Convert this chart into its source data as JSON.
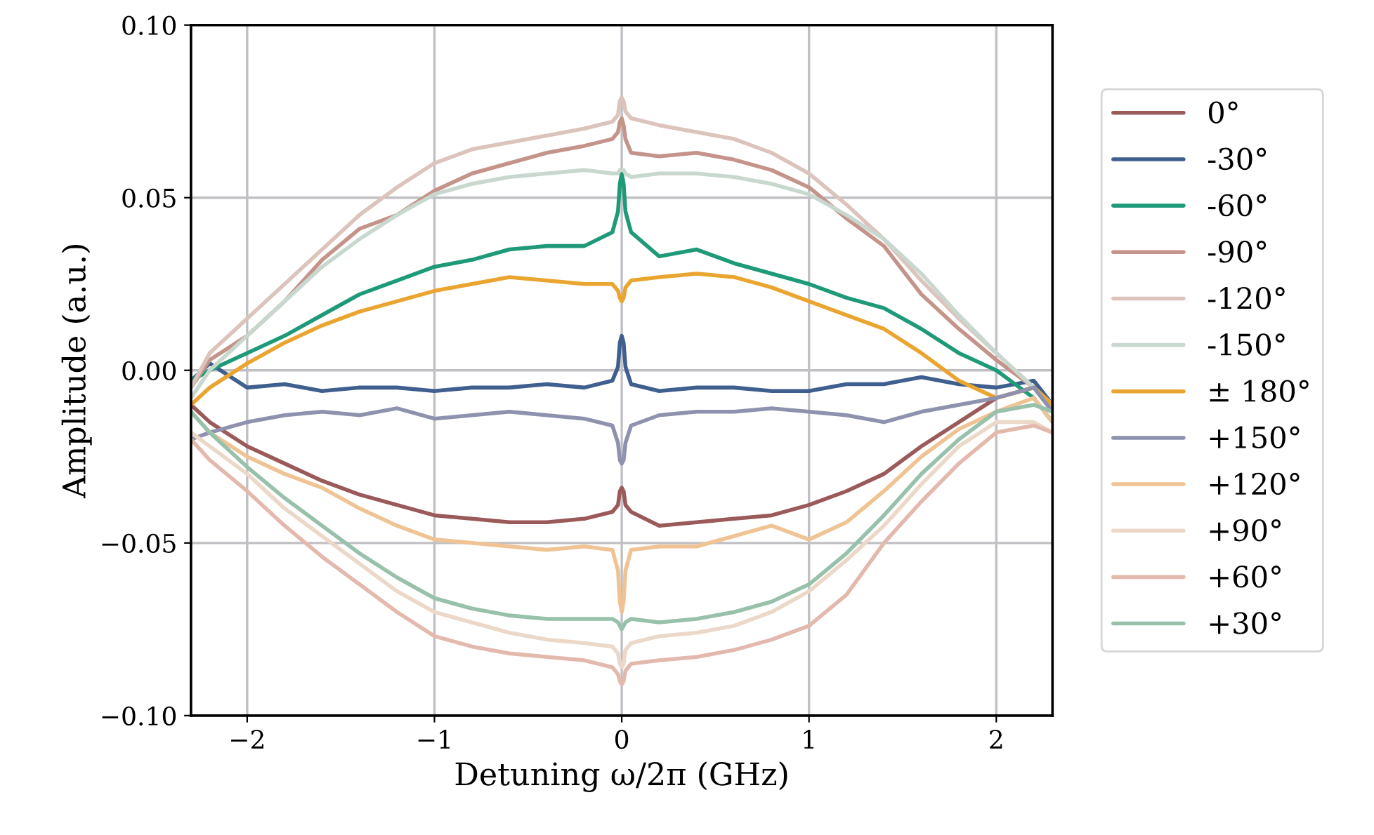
{
  "chart_data": {
    "type": "line",
    "xlabel": "Detuning ω/2π (GHz)",
    "ylabel": "Amplitude (a.u.)",
    "x": [
      -2.3,
      -2.2,
      -2.0,
      -1.8,
      -1.6,
      -1.4,
      -1.2,
      -1.0,
      -0.8,
      -0.6,
      -0.4,
      -0.2,
      -0.05,
      -0.02,
      -0.01,
      0,
      0.01,
      0.02,
      0.05,
      0.2,
      0.4,
      0.6,
      0.8,
      1.0,
      1.2,
      1.4,
      1.6,
      1.8,
      2.0,
      2.2,
      2.3
    ],
    "xlim": [
      -2.3,
      2.3
    ],
    "ylim": [
      -0.1,
      0.1
    ],
    "xticks": [
      {
        "value": -2,
        "label": "−2"
      },
      {
        "value": -1,
        "label": "−1"
      },
      {
        "value": 0,
        "label": "0"
      },
      {
        "value": 1,
        "label": "1"
      },
      {
        "value": 2,
        "label": "2"
      }
    ],
    "yticks": [
      {
        "value": -0.1,
        "label": "−0.10"
      },
      {
        "value": -0.05,
        "label": "−0.05"
      },
      {
        "value": 0,
        "label": "0.00"
      },
      {
        "value": 0.05,
        "label": "0.05"
      },
      {
        "value": 0.1,
        "label": "0.10"
      }
    ],
    "grid": true,
    "legend": "right",
    "marker": "none",
    "line_style": "solid",
    "series": [
      {
        "name": "0°",
        "color": "#9b5a5a",
        "values": [
          -0.01,
          -0.015,
          -0.022,
          -0.027,
          -0.032,
          -0.036,
          -0.039,
          -0.042,
          -0.043,
          -0.044,
          -0.044,
          -0.043,
          -0.041,
          -0.039,
          -0.035,
          -0.034,
          -0.035,
          -0.039,
          -0.041,
          -0.045,
          -0.044,
          -0.043,
          -0.042,
          -0.039,
          -0.035,
          -0.03,
          -0.022,
          -0.015,
          -0.008,
          -0.005,
          -0.01
        ]
      },
      {
        "name": "-30°",
        "color": "#3f5f8f",
        "values": [
          -0.003,
          0.002,
          -0.005,
          -0.004,
          -0.006,
          -0.005,
          -0.005,
          -0.006,
          -0.005,
          -0.005,
          -0.004,
          -0.005,
          -0.003,
          0.001,
          0.008,
          0.01,
          0.008,
          0.001,
          -0.004,
          -0.006,
          -0.005,
          -0.005,
          -0.006,
          -0.006,
          -0.004,
          -0.004,
          -0.002,
          -0.004,
          -0.005,
          -0.003,
          -0.01
        ]
      },
      {
        "name": "-60°",
        "color": "#1f9a78",
        "values": [
          -0.003,
          0.0,
          0.005,
          0.01,
          0.016,
          0.022,
          0.026,
          0.03,
          0.032,
          0.035,
          0.036,
          0.036,
          0.04,
          0.046,
          0.054,
          0.057,
          0.054,
          0.046,
          0.04,
          0.033,
          0.035,
          0.031,
          0.028,
          0.025,
          0.021,
          0.018,
          0.012,
          0.005,
          0.0,
          -0.008,
          -0.015
        ]
      },
      {
        "name": "-90°",
        "color": "#c4948a",
        "values": [
          -0.005,
          0.003,
          0.01,
          0.02,
          0.032,
          0.041,
          0.045,
          0.052,
          0.057,
          0.06,
          0.063,
          0.065,
          0.067,
          0.069,
          0.072,
          0.073,
          0.071,
          0.067,
          0.063,
          0.062,
          0.063,
          0.061,
          0.058,
          0.053,
          0.044,
          0.036,
          0.022,
          0.012,
          0.003,
          -0.005,
          -0.01
        ]
      },
      {
        "name": "-120°",
        "color": "#dcc4bc",
        "values": [
          -0.005,
          0.005,
          0.015,
          0.025,
          0.035,
          0.045,
          0.053,
          0.06,
          0.064,
          0.066,
          0.068,
          0.07,
          0.072,
          0.074,
          0.078,
          0.079,
          0.078,
          0.075,
          0.073,
          0.071,
          0.069,
          0.067,
          0.063,
          0.057,
          0.048,
          0.038,
          0.026,
          0.015,
          0.005,
          -0.005,
          -0.01
        ]
      },
      {
        "name": "-150°",
        "color": "#c9d8cf",
        "values": [
          -0.008,
          0.0,
          0.01,
          0.02,
          0.03,
          0.038,
          0.045,
          0.051,
          0.054,
          0.056,
          0.057,
          0.058,
          0.057,
          0.057,
          0.058,
          0.058,
          0.058,
          0.057,
          0.056,
          0.057,
          0.057,
          0.056,
          0.054,
          0.051,
          0.045,
          0.038,
          0.028,
          0.016,
          0.005,
          -0.005,
          -0.01
        ]
      },
      {
        "name": "± 180°",
        "color": "#eaa530",
        "values": [
          -0.01,
          -0.005,
          0.002,
          0.008,
          0.013,
          0.017,
          0.02,
          0.023,
          0.025,
          0.027,
          0.026,
          0.025,
          0.025,
          0.023,
          0.021,
          0.02,
          0.021,
          0.024,
          0.026,
          0.027,
          0.028,
          0.027,
          0.024,
          0.02,
          0.016,
          0.012,
          0.005,
          -0.003,
          -0.008,
          -0.005,
          -0.01
        ]
      },
      {
        "name": "+150°",
        "color": "#8f92ae",
        "values": [
          -0.02,
          -0.018,
          -0.015,
          -0.013,
          -0.012,
          -0.013,
          -0.011,
          -0.014,
          -0.013,
          -0.012,
          -0.013,
          -0.014,
          -0.016,
          -0.021,
          -0.026,
          -0.027,
          -0.026,
          -0.021,
          -0.016,
          -0.013,
          -0.012,
          -0.012,
          -0.011,
          -0.012,
          -0.013,
          -0.015,
          -0.012,
          -0.01,
          -0.008,
          -0.005,
          -0.012
        ]
      },
      {
        "name": "+120°",
        "color": "#efc393",
        "values": [
          -0.012,
          -0.018,
          -0.025,
          -0.03,
          -0.034,
          -0.04,
          -0.045,
          -0.049,
          -0.05,
          -0.051,
          -0.052,
          -0.051,
          -0.052,
          -0.058,
          -0.067,
          -0.07,
          -0.067,
          -0.058,
          -0.052,
          -0.051,
          -0.051,
          -0.048,
          -0.045,
          -0.049,
          -0.044,
          -0.035,
          -0.025,
          -0.017,
          -0.012,
          -0.008,
          -0.015
        ]
      },
      {
        "name": "+90°",
        "color": "#ecd8c8",
        "values": [
          -0.018,
          -0.022,
          -0.03,
          -0.04,
          -0.048,
          -0.056,
          -0.064,
          -0.07,
          -0.073,
          -0.076,
          -0.078,
          -0.079,
          -0.08,
          -0.082,
          -0.085,
          -0.086,
          -0.085,
          -0.081,
          -0.079,
          -0.077,
          -0.076,
          -0.074,
          -0.07,
          -0.064,
          -0.055,
          -0.045,
          -0.033,
          -0.022,
          -0.015,
          -0.015,
          -0.018
        ]
      },
      {
        "name": "+60°",
        "color": "#e4b9ad",
        "values": [
          -0.02,
          -0.026,
          -0.035,
          -0.045,
          -0.054,
          -0.062,
          -0.07,
          -0.077,
          -0.08,
          -0.082,
          -0.083,
          -0.084,
          -0.086,
          -0.088,
          -0.09,
          -0.091,
          -0.09,
          -0.087,
          -0.085,
          -0.084,
          -0.083,
          -0.081,
          -0.078,
          -0.074,
          -0.065,
          -0.05,
          -0.038,
          -0.027,
          -0.018,
          -0.016,
          -0.018
        ]
      },
      {
        "name": "+30°",
        "color": "#98c1ab",
        "values": [
          -0.012,
          -0.018,
          -0.028,
          -0.037,
          -0.045,
          -0.053,
          -0.06,
          -0.066,
          -0.069,
          -0.071,
          -0.072,
          -0.072,
          -0.072,
          -0.073,
          -0.074,
          -0.075,
          -0.074,
          -0.073,
          -0.072,
          -0.073,
          -0.072,
          -0.07,
          -0.067,
          -0.062,
          -0.053,
          -0.042,
          -0.03,
          -0.02,
          -0.012,
          -0.01,
          -0.012
        ]
      }
    ]
  }
}
